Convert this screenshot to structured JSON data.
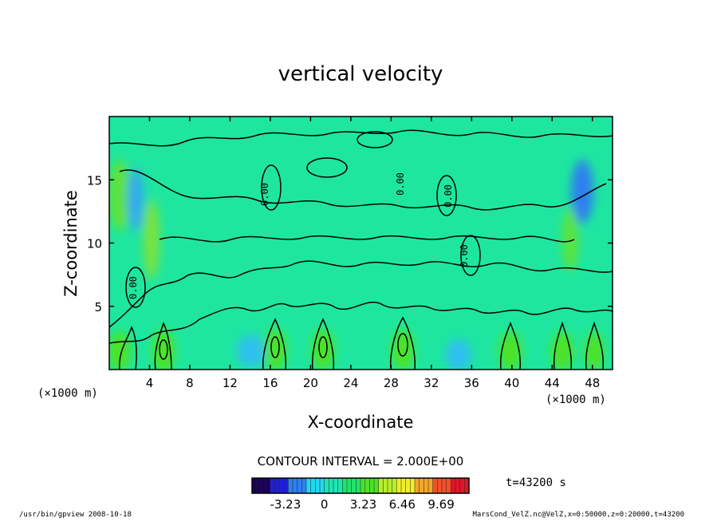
{
  "chart_data": {
    "type": "heatmap",
    "title": "vertical velocity",
    "xlabel": "X-coordinate",
    "ylabel": "Z-coordinate",
    "x_unit_left": "(×1000 m)",
    "x_unit_right": "(×1000 m)",
    "xlim": [
      0,
      50
    ],
    "ylim": [
      0,
      20
    ],
    "x_ticks": [
      4,
      8,
      12,
      16,
      20,
      24,
      28,
      32,
      36,
      40,
      44,
      48
    ],
    "y_ticks": [
      5,
      10,
      15
    ],
    "contour_interval_label": "CONTOUR INTERVAL = 2.000E+00",
    "time_label": "t=43200 s",
    "contour_value_label": "0.00",
    "colorbar": {
      "ticks": [
        "-3.23",
        "0",
        "3.23",
        "6.46",
        "9.69"
      ],
      "tick_values": [
        -3.23,
        0,
        3.23,
        6.46,
        9.69
      ],
      "min": -6.0,
      "max": 12.0,
      "colors": [
        "#1a005a",
        "#1f1fd6",
        "#2f7ff0",
        "#22d7f0",
        "#1fe6b0",
        "#22e46a",
        "#4ee228",
        "#b8ee2a",
        "#f0ee2a",
        "#f2a62a",
        "#f2502a",
        "#e0162a"
      ]
    },
    "background_color": "#1ee6a0"
  },
  "footer": {
    "left": "/usr/bin/gpview   2008-10-18",
    "right": "MarsCond_VelZ.nc@VelZ,x=0:50000,z=0:20000,t=43200"
  }
}
